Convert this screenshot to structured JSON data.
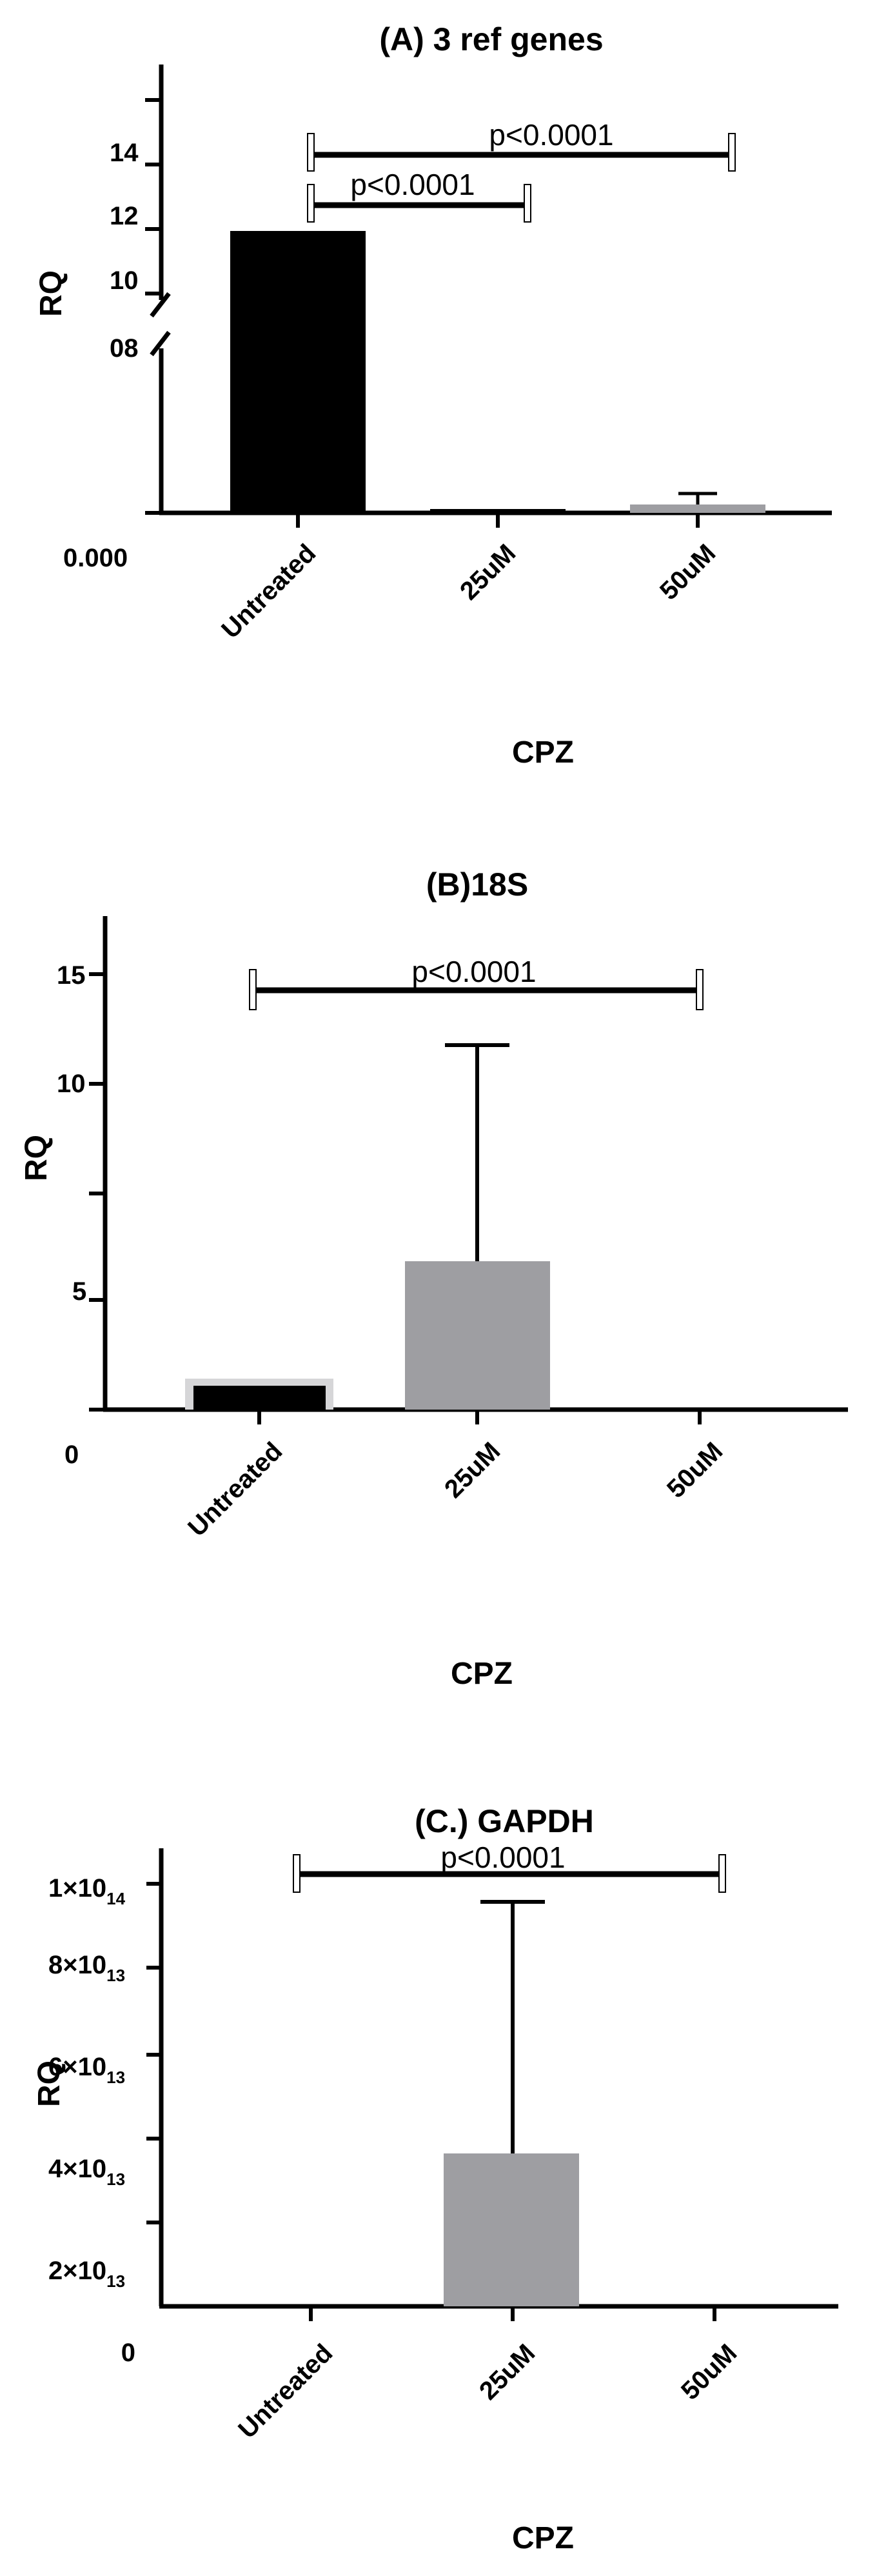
{
  "chart_data": [
    {
      "type": "bar",
      "title": "(A) 3 ref genes",
      "xlabel": "CPZ",
      "ylabel": "RQ",
      "categories": [
        "Untreated",
        "25uM",
        "50uM"
      ],
      "values": [
        12,
        0.1,
        0.3
      ],
      "error_upper": [
        0,
        0,
        0.8
      ],
      "bar_colors": [
        "#000000",
        "#9e9ea2",
        "#9e9ea2"
      ],
      "y_break": "08 to 10",
      "ytick_labels": [
        "0.000",
        "08",
        "10",
        "12",
        "14"
      ],
      "significance": [
        {
          "from": "Untreated",
          "to": "25uM",
          "label": "p<0.0001"
        },
        {
          "from": "Untreated",
          "to": "50uM",
          "label": "p<0.0001"
        }
      ]
    },
    {
      "type": "bar",
      "title": "(B)18S",
      "xlabel": "CPZ",
      "ylabel": "RQ",
      "categories": [
        "Untreated",
        "25uM",
        "50uM"
      ],
      "values": [
        1,
        6.5,
        0
      ],
      "error_upper": [
        0.3,
        15.5,
        0
      ],
      "bar_colors": [
        "#000000",
        "#9e9ea2",
        "#9e9ea2"
      ],
      "ylim": [
        0,
        17
      ],
      "ytick_labels": [
        "0",
        "5",
        "10",
        "15"
      ],
      "significance": [
        {
          "from": "Untreated",
          "to": "50uM",
          "label": "p<0.0001"
        }
      ]
    },
    {
      "type": "bar",
      "title": "(C.) GAPDH",
      "xlabel": "CPZ",
      "ylabel": "RQ",
      "categories": [
        "Untreated",
        "25uM",
        "50uM"
      ],
      "values": [
        0,
        42000000000000.0,
        0
      ],
      "error_upper": [
        0,
        100000000000000.0,
        0
      ],
      "bar_colors": [
        "#000000",
        "#9e9ea2",
        "#9e9ea2"
      ],
      "ylim": [
        0,
        110000000000000.0
      ],
      "ytick_labels": [
        {
          "mant": "0",
          "exp": ""
        },
        {
          "mant": "2×10",
          "exp": "13"
        },
        {
          "mant": "4×10",
          "exp": "13"
        },
        {
          "mant": "6×10",
          "exp": "13"
        },
        {
          "mant": "8×10",
          "exp": "13"
        },
        {
          "mant": "1×10",
          "exp": "14"
        }
      ],
      "significance": [
        {
          "from": "Untreated",
          "to": "50uM",
          "label": "p<0.0001"
        }
      ]
    }
  ]
}
